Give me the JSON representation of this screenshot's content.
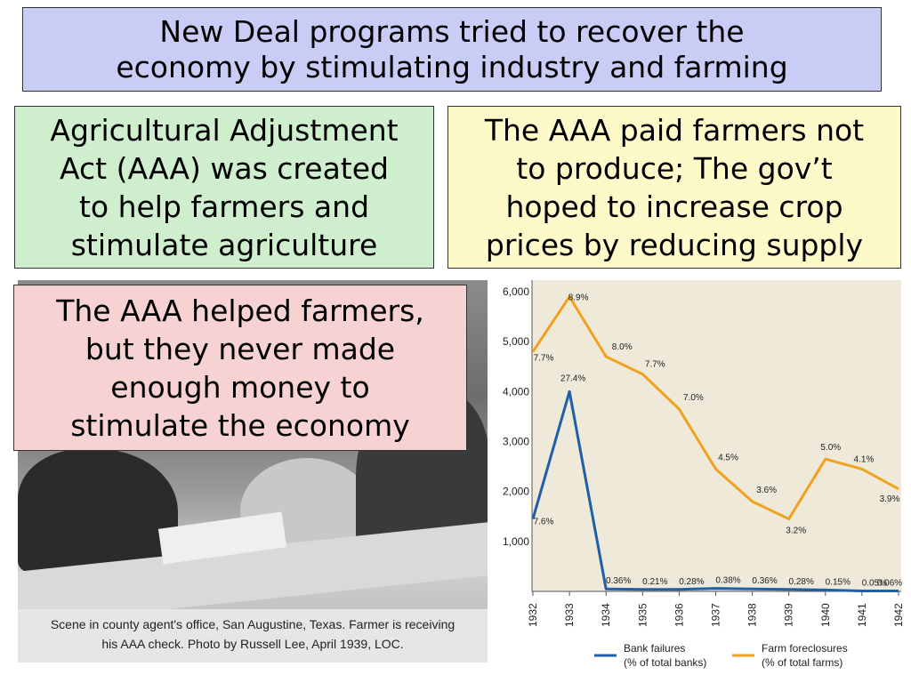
{
  "title": {
    "line1": "New Deal programs tried to recover the",
    "line2": "economy by stimulating industry and farming"
  },
  "box_green": {
    "lines": [
      "Agricultural Adjustment",
      "Act (AAA) was created",
      "to help farmers and",
      "stimulate agriculture"
    ]
  },
  "box_yellow": {
    "lines": [
      "The AAA paid farmers not",
      "to produce; The gov’t",
      "hoped to increase crop",
      "prices by reducing supply"
    ]
  },
  "box_pink": {
    "lines": [
      "The AAA helped farmers,",
      "but they never made",
      "enough money to",
      "stimulate the economy"
    ]
  },
  "photo": {
    "caption_line1": "Scene in county agent's office, San Augustine, Texas. Farmer is receiving",
    "caption_line2": "his AAA check. Photo by Russell Lee, April 1939, LOC."
  },
  "chart_data": {
    "type": "line",
    "x": [
      "1932",
      "1933",
      "1934",
      "1935",
      "1936",
      "1937",
      "1938",
      "1939",
      "1940",
      "1941",
      "1942"
    ],
    "ylim": [
      0,
      6000
    ],
    "yticks": [
      "1,000",
      "2,000",
      "3,000",
      "4,000",
      "5,000",
      "6,000"
    ],
    "ytick_values": [
      1000,
      2000,
      3000,
      4000,
      5000,
      6000
    ],
    "grid": false,
    "legend_position": "bottom",
    "series": [
      {
        "name": "Bank failures (% of total banks)",
        "legend_line1": "Bank failures",
        "legend_line2": "(% of total banks)",
        "color": "#1f5fa8",
        "values": [
          1450,
          4000,
          50,
          40,
          40,
          60,
          50,
          40,
          30,
          10,
          10
        ],
        "labels": [
          "7.6%",
          "27.4%",
          "0.36%",
          "0.21%",
          "0.28%",
          "0.38%",
          "0.36%",
          "0.28%",
          "0.15%",
          "0.05%",
          "0.06%"
        ]
      },
      {
        "name": "Farm foreclosures (% of total farms)",
        "legend_line1": "Farm foreclosures",
        "legend_line2": "(% of total farms)",
        "color": "#f0a11e",
        "values": [
          4800,
          5900,
          4700,
          4350,
          3650,
          2450,
          1800,
          1450,
          2650,
          2450,
          2050
        ],
        "labels": [
          "7.7%",
          "8.9%",
          "8.0%",
          "7.7%",
          "7.0%",
          "4.5%",
          "3.6%",
          "3.2%",
          "5.0%",
          "4.1%",
          "3.9%"
        ]
      }
    ]
  }
}
